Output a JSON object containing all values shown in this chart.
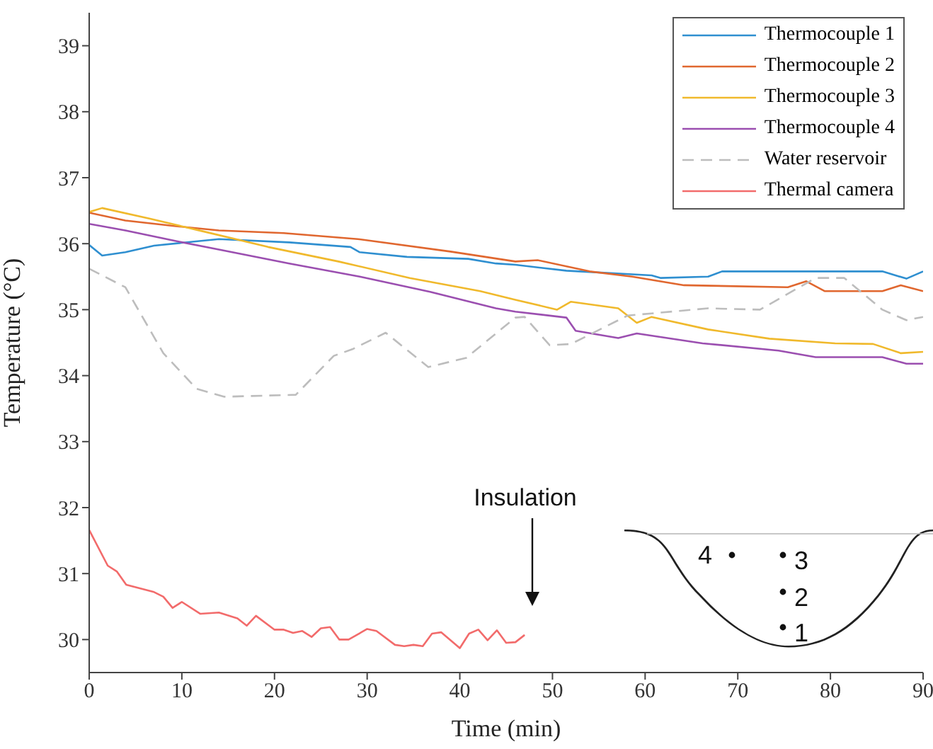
{
  "chart_data": {
    "type": "line",
    "xlabel": "Time (min)",
    "ylabel": "Temperature (°C)",
    "xlim": [
      0,
      90
    ],
    "ylim": [
      29.5,
      39.5
    ],
    "xticks": [
      0,
      10,
      20,
      30,
      40,
      50,
      60,
      70,
      80,
      90
    ],
    "yticks": [
      30,
      31,
      32,
      33,
      34,
      35,
      36,
      37,
      38,
      39
    ],
    "grid": false,
    "legend": "top right",
    "marker": "none",
    "series": [
      {
        "name": "Thermocouple 1",
        "color": "#2f8fd0",
        "line_style": "solid",
        "x": [
          0,
          1.4,
          3.9,
          7,
          14,
          21.6,
          28.2,
          29.2,
          34.3,
          40.9,
          43.9,
          46,
          51.5,
          60.7,
          61.7,
          66.8,
          68.3,
          85.6,
          88.2,
          90
        ],
        "values": [
          35.98,
          35.82,
          35.87,
          35.97,
          36.07,
          36.02,
          35.95,
          35.87,
          35.8,
          35.77,
          35.7,
          35.68,
          35.59,
          35.52,
          35.48,
          35.5,
          35.58,
          35.58,
          35.47,
          35.58
        ]
      },
      {
        "name": "Thermocouple 2",
        "color": "#e0672f",
        "line_style": "solid",
        "x": [
          0,
          3.9,
          9,
          14,
          21,
          29,
          39,
          46,
          48.4,
          54,
          58.6,
          64.2,
          75.4,
          77.4,
          79.4,
          85.6,
          87.6,
          90
        ],
        "values": [
          36.47,
          36.35,
          36.27,
          36.2,
          36.16,
          36.07,
          35.88,
          35.73,
          35.75,
          35.58,
          35.5,
          35.37,
          35.34,
          35.43,
          35.28,
          35.28,
          35.37,
          35.28
        ]
      },
      {
        "name": "Thermocouple 3",
        "color": "#f0b92c",
        "line_style": "solid",
        "x": [
          0,
          1.4,
          6.5,
          11.6,
          19.3,
          26.9,
          34.6,
          42.2,
          46,
          50.5,
          52,
          57.1,
          59.1,
          60.7,
          66.8,
          73.4,
          80.5,
          84.6,
          87.6,
          90
        ],
        "values": [
          36.48,
          36.54,
          36.38,
          36.21,
          35.95,
          35.73,
          35.48,
          35.28,
          35.15,
          35.0,
          35.12,
          35.02,
          34.8,
          34.89,
          34.7,
          34.56,
          34.49,
          34.48,
          34.34,
          34.36
        ]
      },
      {
        "name": "Thermocouple 4",
        "color": "#9b4fb0",
        "line_style": "solid",
        "x": [
          0,
          3.9,
          9,
          14,
          21.6,
          29.2,
          36.8,
          43.9,
          46,
          51.5,
          52.5,
          57.1,
          59.1,
          66.2,
          74.4,
          78.4,
          85.6,
          88.2,
          90
        ],
        "values": [
          36.3,
          36.2,
          36.05,
          35.91,
          35.7,
          35.5,
          35.27,
          35.02,
          34.97,
          34.88,
          34.68,
          34.57,
          34.64,
          34.49,
          34.38,
          34.28,
          34.28,
          34.18,
          34.18
        ]
      },
      {
        "name": "Water reservoir",
        "color": "#bdbdbd",
        "line_style": "dashed",
        "x": [
          0,
          3.9,
          8,
          11.6,
          14.6,
          22.3,
          26.4,
          28.4,
          32,
          36.6,
          40.7,
          46,
          47,
          49.7,
          52,
          58.1,
          66.8,
          72.4,
          78.4,
          81.5,
          85.6,
          88.2,
          90
        ],
        "values": [
          35.62,
          35.34,
          34.34,
          33.8,
          33.68,
          33.71,
          34.3,
          34.4,
          34.65,
          34.13,
          34.27,
          34.88,
          34.89,
          34.46,
          34.48,
          34.91,
          35.02,
          35.0,
          35.48,
          35.48,
          35.0,
          34.84,
          34.89
        ]
      },
      {
        "name": "Thermal camera",
        "color": "#f26b6b",
        "line_style": "solid",
        "x": [
          0,
          2,
          3,
          4,
          7,
          8,
          9,
          10,
          12,
          14,
          16,
          17,
          18,
          20,
          21,
          22,
          23,
          24,
          25,
          26,
          27,
          28,
          30,
          31,
          33,
          34,
          35,
          36,
          37,
          38,
          40,
          41,
          42,
          43,
          44,
          45,
          46,
          47
        ],
        "values": [
          31.66,
          31.12,
          31.03,
          30.83,
          30.72,
          30.65,
          30.48,
          30.57,
          30.39,
          30.41,
          30.32,
          30.21,
          30.36,
          30.15,
          30.15,
          30.1,
          30.13,
          30.04,
          30.17,
          30.19,
          30.0,
          30.0,
          30.16,
          30.13,
          29.92,
          29.9,
          29.92,
          29.9,
          30.09,
          30.11,
          29.87,
          30.09,
          30.15,
          29.99,
          30.14,
          29.95,
          29.96,
          30.07
        ]
      }
    ],
    "annotations": [
      "Insulation",
      "4",
      "3",
      "2",
      "1"
    ]
  }
}
